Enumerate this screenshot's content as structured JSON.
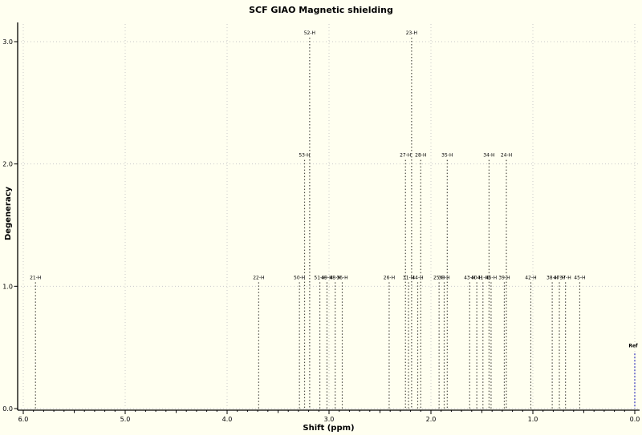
{
  "chart_data": {
    "type": "line",
    "subtype": "stick-spectrum",
    "title": "SCF GIAO Magnetic shielding",
    "xlabel": "Shift (ppm)",
    "ylabel": "Degeneracy",
    "x_axis_reversed": true,
    "xlim": [
      6.0,
      0.0
    ],
    "ylim": [
      0.0,
      3.2
    ],
    "x_tick_labels": [
      "6.0",
      "5.0",
      "4.0",
      "3.0",
      "2.0",
      "1.0",
      "0.0"
    ],
    "y_tick_labels": [
      "0.0",
      "1.0",
      "2.0",
      "3.0"
    ],
    "grid": true,
    "legend": false,
    "colors": {
      "background": "#FFFFF0",
      "grid": "#C9C9C9",
      "peak_line": "#4F4E46",
      "reference_line": "#8080D0",
      "axis": "#000000"
    },
    "peaks": [
      {
        "label": "21-H",
        "shift": 5.88,
        "degeneracy": 1
      },
      {
        "label": "22-H",
        "shift": 3.69,
        "degeneracy": 1
      },
      {
        "label": "50-H",
        "shift": 3.29,
        "degeneracy": 1
      },
      {
        "label": "53-H",
        "shift": 3.24,
        "degeneracy": 2
      },
      {
        "label": "52-H",
        "shift": 3.19,
        "degeneracy": 3
      },
      {
        "label": "51-H",
        "shift": 3.09,
        "degeneracy": 1
      },
      {
        "label": "49-H",
        "shift": 3.02,
        "degeneracy": 1
      },
      {
        "label": "48-H",
        "shift": 2.94,
        "degeneracy": 1
      },
      {
        "label": "36-H",
        "shift": 2.87,
        "degeneracy": 1
      },
      {
        "label": "26-H",
        "shift": 2.41,
        "degeneracy": 1
      },
      {
        "label": "27-H",
        "shift": 2.25,
        "degeneracy": 2
      },
      {
        "label": "31-H",
        "shift": 2.22,
        "degeneracy": 1
      },
      {
        "label": "23-H",
        "shift": 2.19,
        "degeneracy": 3
      },
      {
        "label": "44-H",
        "shift": 2.13,
        "degeneracy": 1
      },
      {
        "label": "28-H",
        "shift": 2.1,
        "degeneracy": 2
      },
      {
        "label": "25-H",
        "shift": 1.92,
        "degeneracy": 1
      },
      {
        "label": "30-H",
        "shift": 1.87,
        "degeneracy": 1
      },
      {
        "label": "35-H",
        "shift": 1.84,
        "degeneracy": 2
      },
      {
        "label": "43-H",
        "shift": 1.62,
        "degeneracy": 1
      },
      {
        "label": "40-H",
        "shift": 1.55,
        "degeneracy": 1
      },
      {
        "label": "41-H",
        "shift": 1.49,
        "degeneracy": 1
      },
      {
        "label": "34-H",
        "shift": 1.43,
        "degeneracy": 2
      },
      {
        "label": "46-H",
        "shift": 1.41,
        "degeneracy": 1
      },
      {
        "label": "39-H",
        "shift": 1.28,
        "degeneracy": 1
      },
      {
        "label": "24-H",
        "shift": 1.26,
        "degeneracy": 2
      },
      {
        "label": "42-H",
        "shift": 1.02,
        "degeneracy": 1
      },
      {
        "label": "38-H",
        "shift": 0.81,
        "degeneracy": 1
      },
      {
        "label": "47-H",
        "shift": 0.74,
        "degeneracy": 1
      },
      {
        "label": "37-H",
        "shift": 0.68,
        "degeneracy": 1
      },
      {
        "label": "45-H",
        "shift": 0.54,
        "degeneracy": 1
      }
    ],
    "reference": {
      "label": "Ref",
      "shift": 0.0,
      "height": 0.45
    }
  }
}
